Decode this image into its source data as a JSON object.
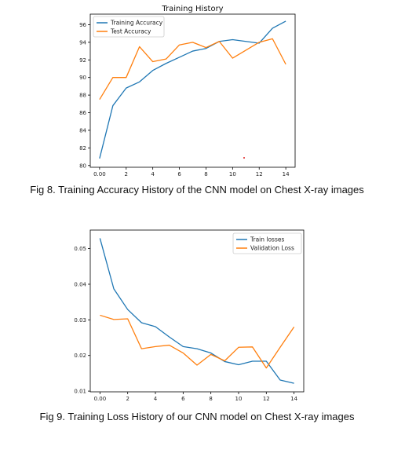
{
  "chart_data": [
    {
      "type": "line",
      "title": "Training History",
      "xlabel": "",
      "ylabel": "",
      "x": [
        0,
        1,
        2,
        3,
        4,
        5,
        6,
        7,
        8,
        9,
        10,
        11,
        12,
        13,
        14
      ],
      "xlim": [
        -0.7,
        14.7
      ],
      "ylim": [
        79.8,
        97.2
      ],
      "xticks": [
        0,
        2,
        4,
        6,
        8,
        10,
        12,
        14
      ],
      "yticks": [
        80,
        82,
        84,
        86,
        88,
        90,
        92,
        94,
        96
      ],
      "legend": "upper-left",
      "grid": false,
      "series": [
        {
          "name": "Training Accuracy",
          "color": "#1f77b4",
          "values": [
            80.8,
            86.8,
            88.8,
            89.5,
            90.8,
            91.6,
            92.3,
            93.0,
            93.3,
            94.1,
            94.3,
            94.1,
            93.9,
            95.6,
            96.4
          ]
        },
        {
          "name": "Test Accuracy",
          "color": "#ff7f0e",
          "values": [
            87.5,
            90.0,
            90.0,
            93.5,
            91.8,
            92.1,
            93.7,
            94.0,
            93.4,
            94.1,
            92.2,
            93.1,
            94.0,
            94.4,
            91.5
          ]
        }
      ]
    },
    {
      "type": "line",
      "title": "",
      "xlabel": "",
      "ylabel": "",
      "x": [
        0,
        1,
        2,
        3,
        4,
        5,
        6,
        7,
        8,
        9,
        10,
        11,
        12,
        13,
        14
      ],
      "xlim": [
        -0.7,
        14.7
      ],
      "ylim": [
        0.0098,
        0.0552
      ],
      "xticks": [
        0,
        2,
        4,
        6,
        8,
        10,
        12,
        14
      ],
      "yticks": [
        0.01,
        0.02,
        0.03,
        0.04,
        0.05
      ],
      "legend": "upper-right",
      "grid": false,
      "series": [
        {
          "name": "Train losses",
          "color": "#1f77b4",
          "values": [
            0.0529,
            0.0387,
            0.0329,
            0.0292,
            0.0281,
            0.0252,
            0.0225,
            0.0219,
            0.0207,
            0.0183,
            0.0174,
            0.0184,
            0.0184,
            0.0131,
            0.0122
          ]
        },
        {
          "name": "Validation Loss",
          "color": "#ff7f0e",
          "values": [
            0.0313,
            0.0301,
            0.0303,
            0.0219,
            0.0225,
            0.0229,
            0.0207,
            0.0173,
            0.0203,
            0.0185,
            0.0223,
            0.0224,
            0.0165,
            0.0223,
            0.028
          ]
        }
      ]
    }
  ],
  "captions": {
    "fig8": "Fig 8. Training Accuracy History of the CNN model on Chest X-ray images",
    "fig9": "Fig 9. Training Loss History of our CNN model on Chest X-ray images"
  }
}
